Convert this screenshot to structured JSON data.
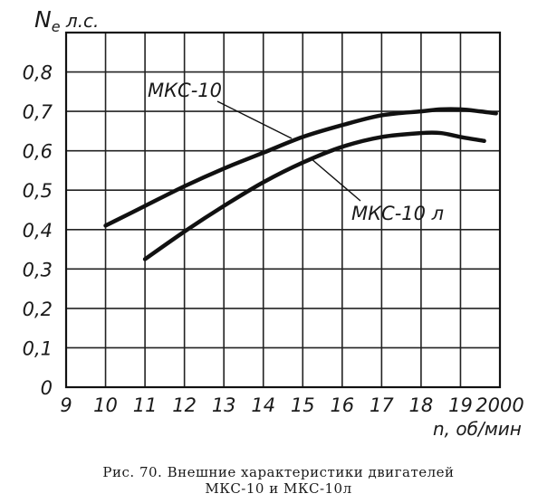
{
  "chart_data": {
    "type": "line",
    "ylabel_prefix": "N",
    "ylabel_sub": "e",
    "ylabel_suffix": " л.с.",
    "xlabel": "n, об/мин",
    "x_ticks": [
      "9",
      "10",
      "11",
      "12",
      "13",
      "14",
      "15",
      "16",
      "17",
      "18",
      "19",
      "2000"
    ],
    "y_ticks": [
      "0",
      "0,1",
      "0,2",
      "0,3",
      "0,4",
      "0,5",
      "0,6",
      "0,7",
      "0,8"
    ],
    "xlim": [
      900,
      2000
    ],
    "ylim": [
      0,
      0.9
    ],
    "grid": true,
    "series": [
      {
        "name": "МКС-10",
        "x": [
          1000,
          1100,
          1200,
          1300,
          1400,
          1500,
          1600,
          1700,
          1800,
          1850,
          1900,
          1950,
          1990
        ],
        "y": [
          0.41,
          0.46,
          0.51,
          0.555,
          0.595,
          0.635,
          0.665,
          0.69,
          0.7,
          0.705,
          0.705,
          0.7,
          0.695
        ]
      },
      {
        "name": "МКС-10 л",
        "x": [
          1100,
          1200,
          1300,
          1400,
          1500,
          1600,
          1700,
          1800,
          1850,
          1900,
          1960
        ],
        "y": [
          0.325,
          0.395,
          0.46,
          0.52,
          0.57,
          0.61,
          0.635,
          0.645,
          0.645,
          0.635,
          0.625
        ]
      }
    ]
  },
  "caption": {
    "line1": "Рис.  70.  Внешние  характеристики  двигателей",
    "line2": "МКС-10 и МКС-10л"
  }
}
